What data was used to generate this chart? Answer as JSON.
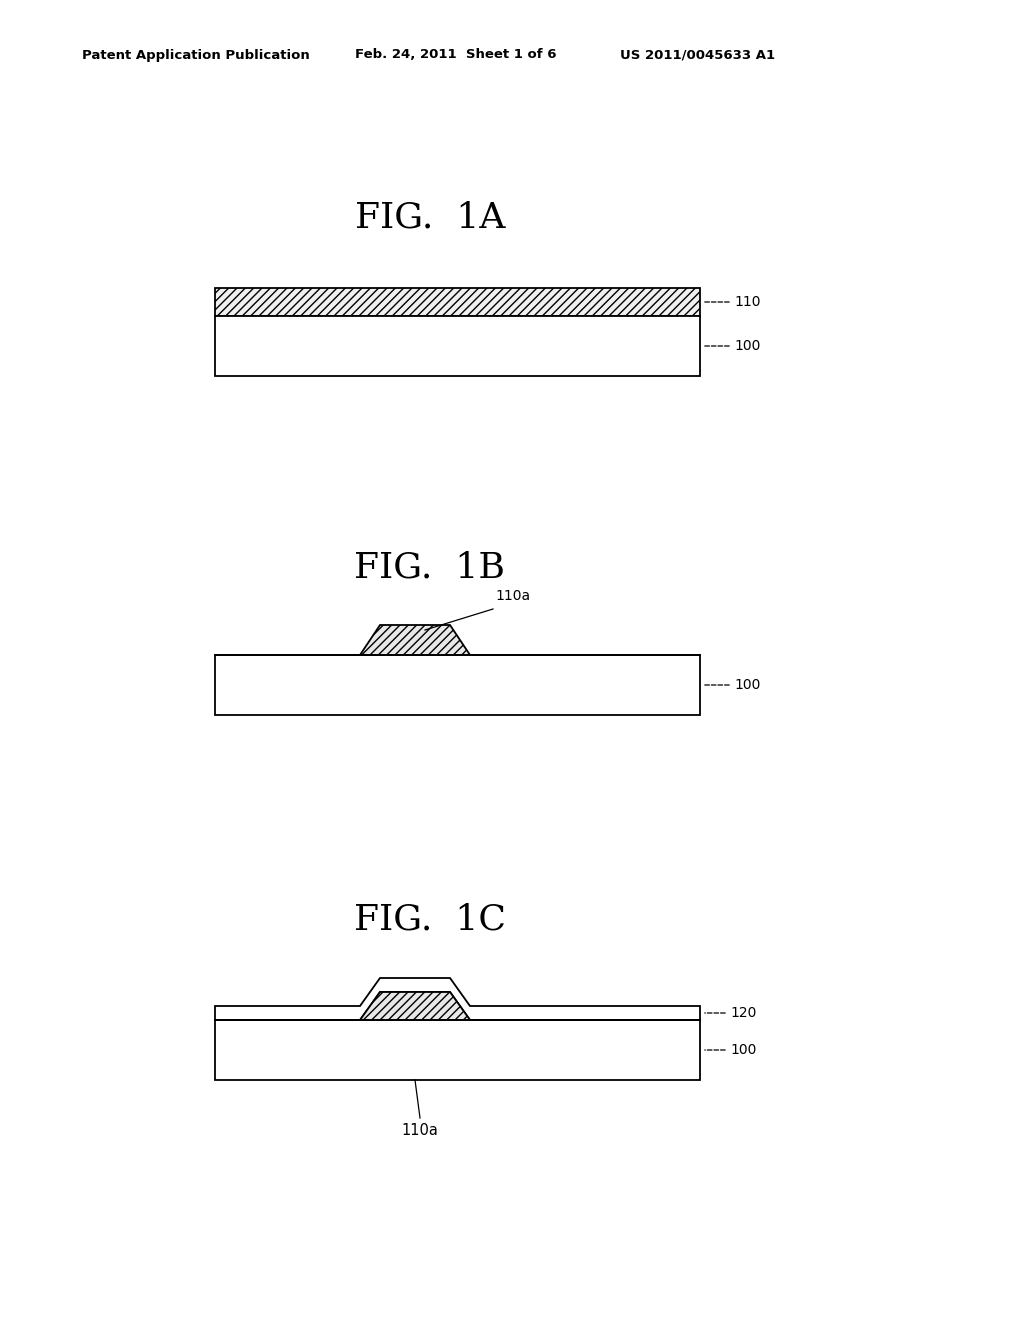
{
  "bg_color": "#ffffff",
  "header_left": "Patent Application Publication",
  "header_mid": "Feb. 24, 2011  Sheet 1 of 6",
  "header_right": "US 2011/0045633 A1",
  "fig1a_title": "FIG.  1A",
  "fig1b_title": "FIG.  1B",
  "fig1c_title": "FIG.  1C",
  "label_110": "110",
  "label_100_1a": "100",
  "label_100_1b": "100",
  "label_100_1c": "100",
  "label_110a_1b": "110a",
  "label_110a_1c": "110a",
  "label_120": "120",
  "hatch_pattern": "////",
  "line_color": "#000000"
}
